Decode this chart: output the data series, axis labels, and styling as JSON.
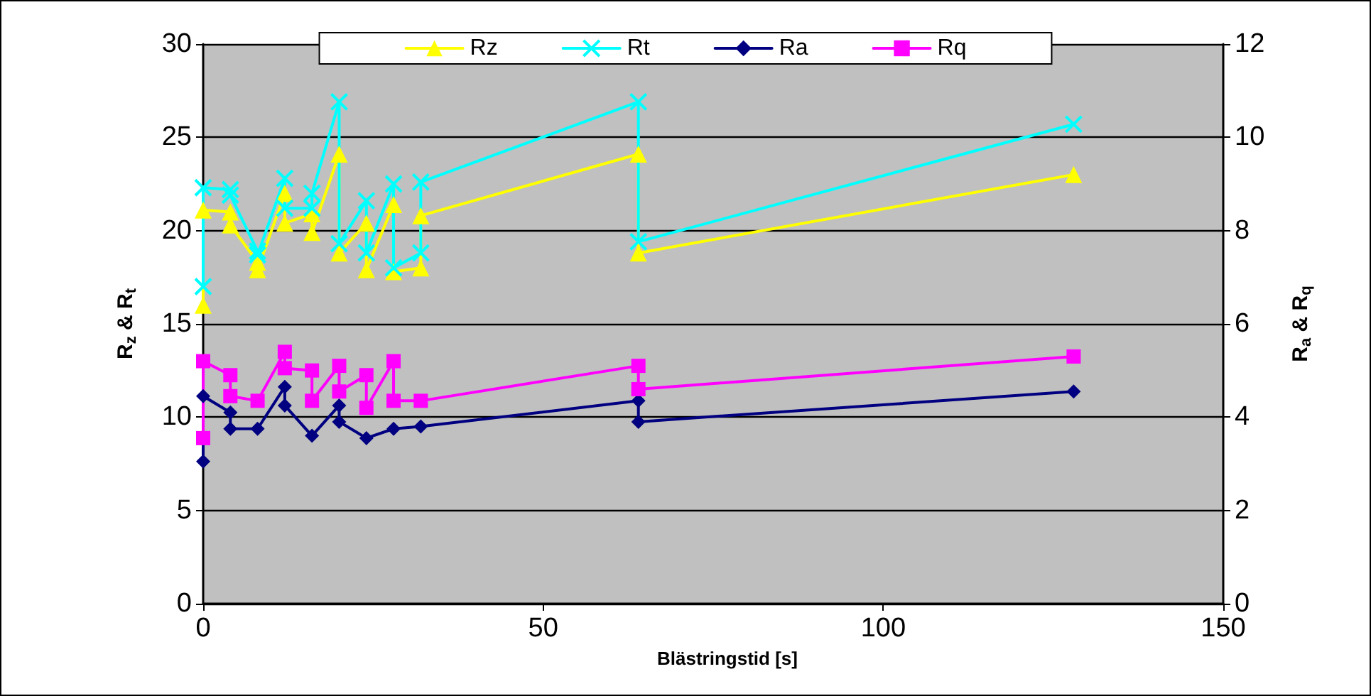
{
  "chart_data": {
    "type": "line",
    "xlabel": "Blästringstid [s]",
    "ylabel": "R$_{z}$ & R$_{t}$",
    "y2label": "R$_{a}$ & R$_{q}$",
    "xlim": [
      0,
      150
    ],
    "xticks": [
      0,
      50,
      100,
      150
    ],
    "ylim": [
      0,
      30
    ],
    "yticks": [
      0,
      5,
      10,
      15,
      20,
      25,
      30
    ],
    "y2lim": [
      0,
      12
    ],
    "y2ticks": [
      0,
      2,
      4,
      6,
      8,
      10,
      12
    ],
    "grid": "y",
    "legend": "top",
    "line_style": "solid",
    "series": [
      {
        "name": "Rz",
        "color": "#ffff00",
        "marker": "triangle",
        "x": [
          0,
          0,
          4,
          4,
          8,
          8,
          12,
          12,
          16,
          16,
          20,
          20,
          24,
          24,
          28,
          28,
          32,
          32,
          64,
          64,
          128
        ],
        "values": [
          16.0,
          21.1,
          21.0,
          20.3,
          18.3,
          17.9,
          22.0,
          20.4,
          20.9,
          19.9,
          24.1,
          18.8,
          20.4,
          17.9,
          21.4,
          17.8,
          18.0,
          20.8,
          24.1,
          18.8,
          23.0
        ]
      },
      {
        "name": "Rt",
        "color": "#00ffff",
        "marker": "cross",
        "x": [
          0,
          0,
          4,
          4,
          8,
          8,
          12,
          12,
          16,
          16,
          20,
          20,
          24,
          24,
          28,
          28,
          32,
          32,
          64,
          64,
          128
        ],
        "values": [
          17.0,
          22.3,
          22.2,
          21.9,
          18.9,
          18.7,
          22.8,
          21.2,
          21.2,
          22.0,
          26.9,
          19.3,
          21.6,
          18.8,
          22.5,
          18.0,
          18.8,
          22.6,
          26.9,
          19.4,
          25.7
        ]
      },
      {
        "name": "Ra",
        "color": "#000080",
        "marker": "diamond",
        "axis": "y2",
        "x": [
          0,
          0,
          4,
          4,
          8,
          12,
          12,
          16,
          20,
          20,
          24,
          28,
          32,
          64,
          64,
          128
        ],
        "values": [
          3.05,
          4.45,
          4.1,
          3.75,
          3.75,
          4.65,
          4.25,
          3.6,
          4.25,
          3.9,
          3.55,
          3.75,
          3.8,
          4.35,
          3.9,
          4.55
        ]
      },
      {
        "name": "Rq",
        "color": "#ff00ff",
        "marker": "square",
        "axis": "y2",
        "x": [
          0,
          0,
          4,
          4,
          8,
          12,
          12,
          16,
          16,
          20,
          20,
          24,
          24,
          28,
          28,
          32,
          64,
          64,
          128
        ],
        "values": [
          3.55,
          5.2,
          4.9,
          4.45,
          4.35,
          5.4,
          5.05,
          5.0,
          4.35,
          5.1,
          4.55,
          4.9,
          4.2,
          5.2,
          4.35,
          4.35,
          5.1,
          4.6,
          5.3
        ]
      }
    ]
  }
}
